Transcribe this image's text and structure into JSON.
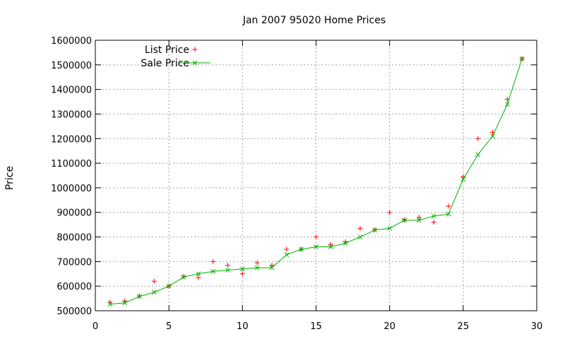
{
  "chart_data": {
    "type": "line",
    "title": "Jan 2007 95020 Home Prices",
    "xlabel": "",
    "ylabel": "Price",
    "xlim": [
      0,
      30
    ],
    "ylim": [
      500000,
      1600000
    ],
    "x_ticks": [
      0,
      5,
      10,
      15,
      20,
      25,
      30
    ],
    "y_ticks": [
      500000,
      600000,
      700000,
      800000,
      900000,
      1000000,
      1100000,
      1200000,
      1300000,
      1400000,
      1500000,
      1600000
    ],
    "grid": true,
    "legend_position": "top-left",
    "series": [
      {
        "name": "List Price",
        "style": "points",
        "marker": "plus",
        "color": "#ff0000",
        "x": [
          1,
          2,
          3,
          4,
          5,
          6,
          7,
          8,
          9,
          10,
          11,
          12,
          13,
          14,
          15,
          16,
          17,
          18,
          19,
          20,
          21,
          22,
          23,
          24,
          25,
          26,
          27,
          28,
          29
        ],
        "values": [
          535000,
          540000,
          560000,
          620000,
          600000,
          640000,
          635000,
          700000,
          685000,
          650000,
          695000,
          685000,
          750000,
          750000,
          800000,
          770000,
          780000,
          835000,
          830000,
          900000,
          870000,
          880000,
          860000,
          925000,
          1045000,
          1200000,
          1225000,
          1360000,
          1525000
        ]
      },
      {
        "name": "Sale Price",
        "style": "linespoints",
        "marker": "cross",
        "color": "#00b000",
        "x": [
          1,
          2,
          3,
          4,
          5,
          6,
          7,
          8,
          9,
          10,
          11,
          12,
          13,
          14,
          15,
          16,
          17,
          18,
          19,
          20,
          21,
          22,
          23,
          24,
          25,
          26,
          27,
          28,
          29
        ],
        "values": [
          527000,
          532000,
          558000,
          575000,
          600000,
          637000,
          650000,
          660000,
          665000,
          670000,
          675000,
          675000,
          728000,
          750000,
          760000,
          760000,
          775000,
          800000,
          828000,
          835000,
          868000,
          868000,
          885000,
          893000,
          1035000,
          1135000,
          1210000,
          1340000,
          1525000
        ]
      }
    ]
  }
}
